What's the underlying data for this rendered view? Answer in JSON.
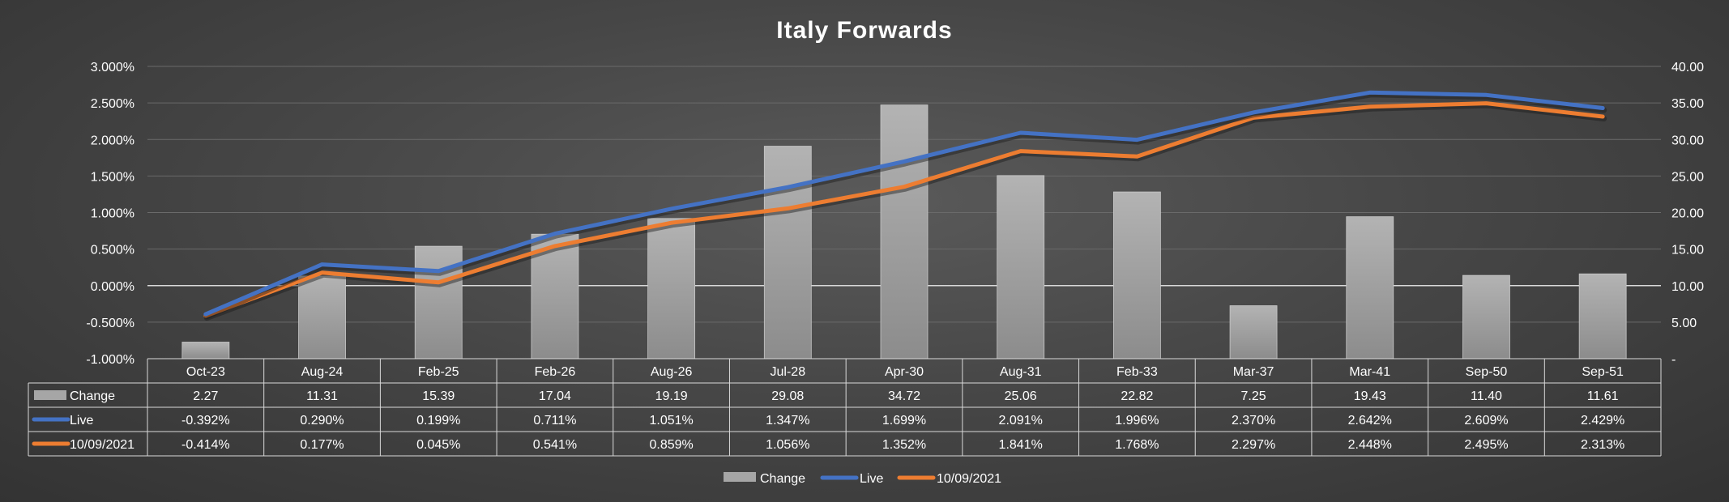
{
  "chart_data": {
    "type": "bar",
    "title": "Italy Forwards",
    "categories": [
      "Oct-23",
      "Aug-24",
      "Feb-25",
      "Feb-26",
      "Aug-26",
      "Jul-28",
      "Apr-30",
      "Aug-31",
      "Feb-33",
      "Mar-37",
      "Mar-41",
      "Sep-50",
      "Sep-51"
    ],
    "series": [
      {
        "name": "Change",
        "type": "bar",
        "axis": "right",
        "color": "#a6a6a6",
        "values": [
          2.27,
          11.31,
          15.39,
          17.04,
          19.19,
          29.08,
          34.72,
          25.06,
          22.82,
          7.25,
          19.43,
          11.4,
          11.61
        ],
        "labels": [
          "2.27",
          "11.31",
          "15.39",
          "17.04",
          "19.19",
          "29.08",
          "34.72",
          "25.06",
          "22.82",
          "7.25",
          "19.43",
          "11.40",
          "11.61"
        ]
      },
      {
        "name": "Live",
        "type": "line",
        "axis": "left",
        "color": "#4472c4",
        "values": [
          -0.392,
          0.29,
          0.199,
          0.711,
          1.051,
          1.347,
          1.699,
          2.091,
          1.996,
          2.37,
          2.642,
          2.609,
          2.429
        ],
        "labels": [
          "-0.392%",
          "0.290%",
          "0.199%",
          "0.711%",
          "1.051%",
          "1.347%",
          "1.699%",
          "2.091%",
          "1.996%",
          "2.370%",
          "2.642%",
          "2.609%",
          "2.429%"
        ]
      },
      {
        "name": "10/09/2021",
        "type": "line",
        "axis": "left",
        "color": "#ed7d31",
        "values": [
          -0.414,
          0.177,
          0.045,
          0.541,
          0.859,
          1.056,
          1.352,
          1.841,
          1.768,
          2.297,
          2.448,
          2.495,
          2.313
        ],
        "labels": [
          "-0.414%",
          "0.177%",
          "0.045%",
          "0.541%",
          "0.859%",
          "1.056%",
          "1.352%",
          "1.841%",
          "1.768%",
          "2.297%",
          "2.448%",
          "2.495%",
          "2.313%"
        ]
      }
    ],
    "y_left": {
      "ylim": [
        -1.0,
        3.0
      ],
      "ticks": [
        -1.0,
        -0.5,
        0.0,
        0.5,
        1.0,
        1.5,
        2.0,
        2.5,
        3.0
      ],
      "tick_labels": [
        "-1.000%",
        "-0.500%",
        "0.000%",
        "0.500%",
        "1.000%",
        "1.500%",
        "2.000%",
        "2.500%",
        "3.000%"
      ]
    },
    "y_right": {
      "ylim": [
        0,
        40
      ],
      "ticks": [
        0,
        5,
        10,
        15,
        20,
        25,
        30,
        35,
        40
      ],
      "tick_labels": [
        "-",
        "5.00",
        "10.00",
        "15.00",
        "20.00",
        "25.00",
        "30.00",
        "35.00",
        "40.00"
      ]
    },
    "grid": true,
    "data_table": true,
    "legend": "bottom-center"
  }
}
